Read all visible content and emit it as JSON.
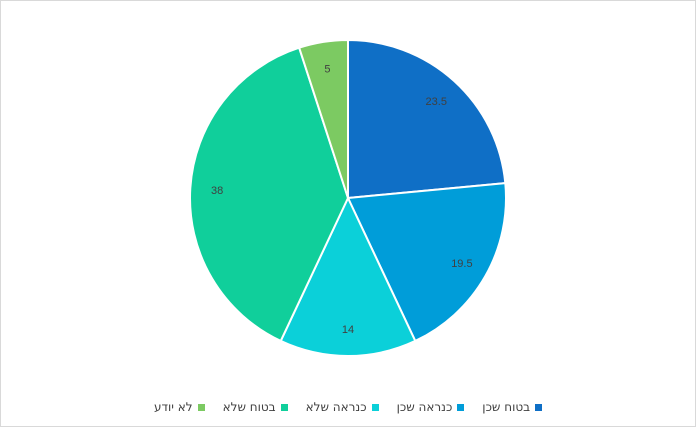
{
  "chart_data": {
    "type": "pie",
    "title": "",
    "categories": [
      "בטוח שכן",
      "כנראה שכן",
      "כנראה שלא",
      "בטוח שלא",
      "לא יודע"
    ],
    "values": [
      23.5,
      19.5,
      14,
      38,
      5
    ],
    "labels": [
      "23.5",
      "19.5",
      "14",
      "38",
      "5"
    ],
    "colors": [
      "#0f6fc6",
      "#009dd9",
      "#0bd0d9",
      "#10cf9b",
      "#7cca62"
    ],
    "legend_position": "bottom",
    "start_angle": "12 o'clock",
    "direction": "clockwise"
  }
}
